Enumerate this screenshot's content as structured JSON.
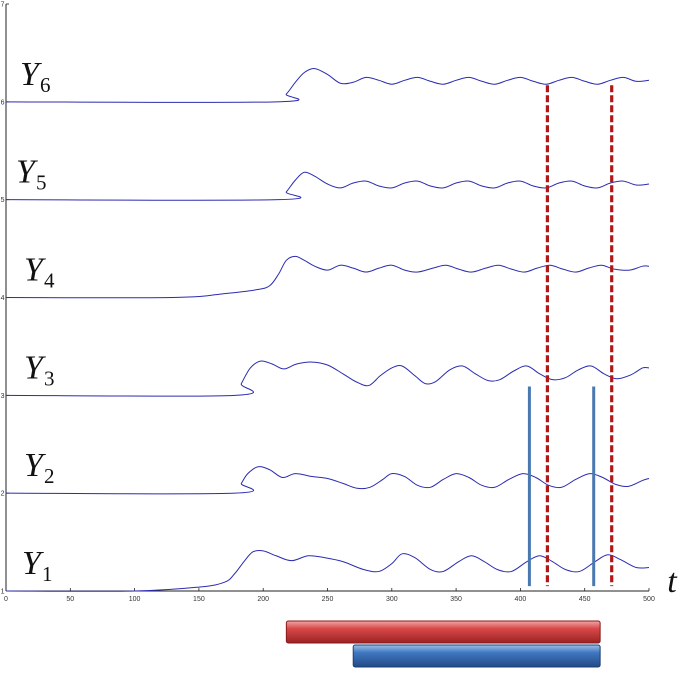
{
  "chart_data": {
    "type": "line",
    "x_axis": {
      "label": "t",
      "lim": [
        0,
        500
      ],
      "ticks": [
        0,
        50,
        100,
        150,
        200,
        250,
        300,
        350,
        400,
        450,
        500
      ],
      "tick_labels": [
        "0",
        "50",
        "100",
        "150",
        "200",
        "250",
        "300",
        "350",
        "400",
        "450",
        "500"
      ]
    },
    "y_axis": {
      "lim": [
        1,
        7
      ],
      "ticks": [
        1,
        2,
        3,
        4,
        5,
        6,
        7
      ],
      "tick_labels": [
        "1",
        "2",
        "3",
        "4",
        "5",
        "6",
        "7"
      ]
    },
    "line_color": "#2b2bb0",
    "series": [
      {
        "name": "Y",
        "sub": "1",
        "points": [
          [
            0,
            1.0
          ],
          [
            100,
            1.0
          ],
          [
            150,
            1.04
          ],
          [
            170,
            1.09
          ],
          [
            178,
            1.18
          ],
          [
            185,
            1.3
          ],
          [
            192,
            1.4
          ],
          [
            200,
            1.41
          ],
          [
            210,
            1.36
          ],
          [
            222,
            1.31
          ],
          [
            235,
            1.36
          ],
          [
            248,
            1.34
          ],
          [
            262,
            1.3
          ],
          [
            278,
            1.22
          ],
          [
            290,
            1.2
          ],
          [
            300,
            1.28
          ],
          [
            308,
            1.38
          ],
          [
            318,
            1.34
          ],
          [
            330,
            1.22
          ],
          [
            340,
            1.2
          ],
          [
            352,
            1.3
          ],
          [
            362,
            1.36
          ],
          [
            372,
            1.3
          ],
          [
            382,
            1.22
          ],
          [
            393,
            1.2
          ],
          [
            405,
            1.3
          ],
          [
            415,
            1.36
          ],
          [
            425,
            1.3
          ],
          [
            435,
            1.22
          ],
          [
            446,
            1.2
          ],
          [
            458,
            1.3
          ],
          [
            468,
            1.37
          ],
          [
            478,
            1.32
          ],
          [
            490,
            1.24
          ],
          [
            500,
            1.24
          ]
        ]
      },
      {
        "name": "Y",
        "sub": "2",
        "points": [
          [
            0,
            2.0
          ],
          [
            178,
            2.0
          ],
          [
            183,
            2.1
          ],
          [
            188,
            2.2
          ],
          [
            196,
            2.27
          ],
          [
            205,
            2.24
          ],
          [
            215,
            2.16
          ],
          [
            225,
            2.2
          ],
          [
            238,
            2.17
          ],
          [
            250,
            2.15
          ],
          [
            262,
            2.1
          ],
          [
            273,
            2.05
          ],
          [
            283,
            2.06
          ],
          [
            293,
            2.14
          ],
          [
            300,
            2.2
          ],
          [
            310,
            2.17
          ],
          [
            320,
            2.08
          ],
          [
            330,
            2.06
          ],
          [
            340,
            2.14
          ],
          [
            350,
            2.2
          ],
          [
            360,
            2.16
          ],
          [
            370,
            2.08
          ],
          [
            380,
            2.06
          ],
          [
            391,
            2.14
          ],
          [
            402,
            2.2
          ],
          [
            412,
            2.16
          ],
          [
            422,
            2.08
          ],
          [
            432,
            2.06
          ],
          [
            443,
            2.14
          ],
          [
            454,
            2.2
          ],
          [
            464,
            2.16
          ],
          [
            474,
            2.09
          ],
          [
            484,
            2.07
          ],
          [
            495,
            2.13
          ],
          [
            500,
            2.15
          ]
        ]
      },
      {
        "name": "Y",
        "sub": "3",
        "points": [
          [
            0,
            3.0
          ],
          [
            178,
            3.0
          ],
          [
            183,
            3.12
          ],
          [
            190,
            3.28
          ],
          [
            198,
            3.35
          ],
          [
            207,
            3.32
          ],
          [
            216,
            3.27
          ],
          [
            226,
            3.32
          ],
          [
            238,
            3.34
          ],
          [
            250,
            3.31
          ],
          [
            262,
            3.22
          ],
          [
            272,
            3.14
          ],
          [
            282,
            3.1
          ],
          [
            291,
            3.2
          ],
          [
            300,
            3.28
          ],
          [
            308,
            3.3
          ],
          [
            318,
            3.2
          ],
          [
            326,
            3.12
          ],
          [
            334,
            3.14
          ],
          [
            345,
            3.26
          ],
          [
            355,
            3.3
          ],
          [
            365,
            3.22
          ],
          [
            375,
            3.15
          ],
          [
            384,
            3.16
          ],
          [
            395,
            3.25
          ],
          [
            405,
            3.3
          ],
          [
            415,
            3.22
          ],
          [
            425,
            3.16
          ],
          [
            435,
            3.18
          ],
          [
            445,
            3.26
          ],
          [
            455,
            3.3
          ],
          [
            465,
            3.22
          ],
          [
            475,
            3.17
          ],
          [
            486,
            3.21
          ],
          [
            495,
            3.28
          ],
          [
            500,
            3.28
          ]
        ]
      },
      {
        "name": "Y",
        "sub": "4",
        "points": [
          [
            0,
            4.0
          ],
          [
            130,
            4.0
          ],
          [
            170,
            4.04
          ],
          [
            195,
            4.08
          ],
          [
            205,
            4.12
          ],
          [
            212,
            4.24
          ],
          [
            218,
            4.38
          ],
          [
            225,
            4.42
          ],
          [
            232,
            4.38
          ],
          [
            240,
            4.32
          ],
          [
            250,
            4.28
          ],
          [
            260,
            4.33
          ],
          [
            270,
            4.3
          ],
          [
            280,
            4.26
          ],
          [
            290,
            4.3
          ],
          [
            300,
            4.33
          ],
          [
            310,
            4.28
          ],
          [
            320,
            4.26
          ],
          [
            332,
            4.3
          ],
          [
            342,
            4.33
          ],
          [
            352,
            4.29
          ],
          [
            362,
            4.26
          ],
          [
            373,
            4.3
          ],
          [
            383,
            4.33
          ],
          [
            393,
            4.29
          ],
          [
            403,
            4.26
          ],
          [
            413,
            4.3
          ],
          [
            423,
            4.33
          ],
          [
            433,
            4.29
          ],
          [
            443,
            4.26
          ],
          [
            453,
            4.3
          ],
          [
            463,
            4.33
          ],
          [
            473,
            4.29
          ],
          [
            485,
            4.28
          ],
          [
            495,
            4.32
          ],
          [
            500,
            4.32
          ]
        ]
      },
      {
        "name": "Y",
        "sub": "5",
        "points": [
          [
            0,
            5.0
          ],
          [
            212,
            5.0
          ],
          [
            218,
            5.08
          ],
          [
            225,
            5.2
          ],
          [
            232,
            5.28
          ],
          [
            240,
            5.24
          ],
          [
            250,
            5.16
          ],
          [
            260,
            5.12
          ],
          [
            270,
            5.17
          ],
          [
            280,
            5.19
          ],
          [
            290,
            5.14
          ],
          [
            300,
            5.12
          ],
          [
            310,
            5.17
          ],
          [
            320,
            5.19
          ],
          [
            330,
            5.14
          ],
          [
            340,
            5.12
          ],
          [
            350,
            5.17
          ],
          [
            360,
            5.19
          ],
          [
            370,
            5.14
          ],
          [
            380,
            5.12
          ],
          [
            390,
            5.17
          ],
          [
            400,
            5.19
          ],
          [
            410,
            5.14
          ],
          [
            420,
            5.12
          ],
          [
            430,
            5.17
          ],
          [
            440,
            5.19
          ],
          [
            450,
            5.14
          ],
          [
            460,
            5.12
          ],
          [
            470,
            5.17
          ],
          [
            480,
            5.19
          ],
          [
            490,
            5.15
          ],
          [
            500,
            5.16
          ]
        ]
      },
      {
        "name": "Y",
        "sub": "6",
        "points": [
          [
            0,
            6.0
          ],
          [
            210,
            6.0
          ],
          [
            218,
            6.08
          ],
          [
            225,
            6.2
          ],
          [
            232,
            6.3
          ],
          [
            240,
            6.34
          ],
          [
            250,
            6.28
          ],
          [
            260,
            6.19
          ],
          [
            270,
            6.2
          ],
          [
            280,
            6.25
          ],
          [
            290,
            6.22
          ],
          [
            300,
            6.18
          ],
          [
            310,
            6.22
          ],
          [
            320,
            6.25
          ],
          [
            330,
            6.21
          ],
          [
            340,
            6.18
          ],
          [
            350,
            6.22
          ],
          [
            360,
            6.25
          ],
          [
            370,
            6.21
          ],
          [
            380,
            6.18
          ],
          [
            390,
            6.22
          ],
          [
            400,
            6.25
          ],
          [
            410,
            6.21
          ],
          [
            420,
            6.18
          ],
          [
            430,
            6.22
          ],
          [
            440,
            6.25
          ],
          [
            450,
            6.21
          ],
          [
            460,
            6.18
          ],
          [
            470,
            6.22
          ],
          [
            480,
            6.25
          ],
          [
            490,
            6.21
          ],
          [
            500,
            6.22
          ]
        ]
      }
    ],
    "markers": {
      "dashed_lines": {
        "color": "#b01818",
        "x": [
          421,
          471
        ],
        "y_from": 1.05,
        "y_to": 6.17
      },
      "solid_lines": {
        "color": "#4a78b0",
        "x": [
          407,
          457
        ],
        "y_from": 1.05,
        "y_to": 3.09
      }
    },
    "bars": [
      {
        "color": "#d23b3b",
        "x_start": 218,
        "x_end": 462,
        "row": 0
      },
      {
        "color": "#3a6fb5",
        "x_start": 270,
        "x_end": 462,
        "row": 1
      }
    ]
  }
}
